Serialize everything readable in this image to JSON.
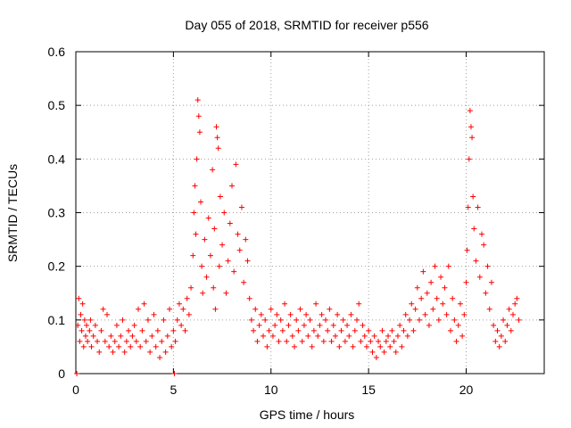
{
  "chart_data": {
    "type": "scatter",
    "title": "Day 055 of 2018, SRMTID for receiver p556",
    "xlabel": "GPS time / hours",
    "ylabel": "SRMTID / TECUs",
    "xlim": [
      0,
      24
    ],
    "ylim": [
      0,
      0.6
    ],
    "xticks": [
      0,
      5,
      10,
      15,
      20
    ],
    "yticks": [
      0,
      0.1,
      0.2,
      0.3,
      0.4,
      0.5,
      0.6
    ],
    "xtick_labels": [
      "0",
      "5",
      "10",
      "15",
      "20"
    ],
    "ytick_labels": [
      "0",
      "0.1",
      "0.2",
      "0.3",
      "0.4",
      "0.5",
      "0.6"
    ],
    "grid": true,
    "marker": "+",
    "color": "#ff0000",
    "series": [
      {
        "name": "SRMTID",
        "points": [
          [
            0.05,
            0.0
          ],
          [
            0.1,
            0.09
          ],
          [
            0.15,
            0.14
          ],
          [
            0.2,
            0.06
          ],
          [
            0.25,
            0.11
          ],
          [
            0.3,
            0.08
          ],
          [
            0.35,
            0.13
          ],
          [
            0.4,
            0.05
          ],
          [
            0.45,
            0.1
          ],
          [
            0.5,
            0.07
          ],
          [
            0.55,
            0.09
          ],
          [
            0.6,
            0.06
          ],
          [
            0.7,
            0.08
          ],
          [
            0.75,
            0.1
          ],
          [
            0.8,
            0.05
          ],
          [
            0.9,
            0.07
          ],
          [
            1.0,
            0.09
          ],
          [
            1.1,
            0.06
          ],
          [
            1.2,
            0.04
          ],
          [
            1.3,
            0.08
          ],
          [
            1.4,
            0.12
          ],
          [
            1.5,
            0.06
          ],
          [
            1.6,
            0.11
          ],
          [
            1.7,
            0.05
          ],
          [
            1.8,
            0.07
          ],
          [
            1.9,
            0.04
          ],
          [
            2.0,
            0.06
          ],
          [
            2.1,
            0.09
          ],
          [
            2.2,
            0.05
          ],
          [
            2.3,
            0.07
          ],
          [
            2.4,
            0.1
          ],
          [
            2.5,
            0.04
          ],
          [
            2.6,
            0.06
          ],
          [
            2.7,
            0.08
          ],
          [
            2.8,
            0.05
          ],
          [
            2.9,
            0.07
          ],
          [
            3.0,
            0.09
          ],
          [
            3.1,
            0.06
          ],
          [
            3.2,
            0.12
          ],
          [
            3.3,
            0.05
          ],
          [
            3.4,
            0.08
          ],
          [
            3.5,
            0.13
          ],
          [
            3.6,
            0.06
          ],
          [
            3.7,
            0.1
          ],
          [
            3.8,
            0.04
          ],
          [
            3.9,
            0.07
          ],
          [
            4.0,
            0.11
          ],
          [
            4.1,
            0.05
          ],
          [
            4.2,
            0.08
          ],
          [
            4.3,
            0.03
          ],
          [
            4.4,
            0.06
          ],
          [
            4.5,
            0.1
          ],
          [
            4.6,
            0.04
          ],
          [
            4.7,
            0.07
          ],
          [
            4.8,
            0.12
          ],
          [
            4.9,
            0.05
          ],
          [
            5.0,
            0.08
          ],
          [
            5.05,
            0.0
          ],
          [
            5.1,
            0.06
          ],
          [
            5.2,
            0.1
          ],
          [
            5.3,
            0.13
          ],
          [
            5.4,
            0.09
          ],
          [
            5.5,
            0.12
          ],
          [
            5.6,
            0.08
          ],
          [
            5.7,
            0.14
          ],
          [
            5.8,
            0.11
          ],
          [
            5.9,
            0.16
          ],
          [
            6.0,
            0.22
          ],
          [
            6.05,
            0.3
          ],
          [
            6.1,
            0.35
          ],
          [
            6.15,
            0.26
          ],
          [
            6.2,
            0.4
          ],
          [
            6.25,
            0.51
          ],
          [
            6.3,
            0.48
          ],
          [
            6.35,
            0.45
          ],
          [
            6.4,
            0.32
          ],
          [
            6.45,
            0.2
          ],
          [
            6.5,
            0.15
          ],
          [
            6.6,
            0.25
          ],
          [
            6.7,
            0.18
          ],
          [
            6.8,
            0.29
          ],
          [
            6.9,
            0.22
          ],
          [
            7.0,
            0.38
          ],
          [
            7.05,
            0.16
          ],
          [
            7.1,
            0.27
          ],
          [
            7.15,
            0.12
          ],
          [
            7.2,
            0.46
          ],
          [
            7.25,
            0.44
          ],
          [
            7.3,
            0.42
          ],
          [
            7.35,
            0.2
          ],
          [
            7.4,
            0.33
          ],
          [
            7.5,
            0.24
          ],
          [
            7.6,
            0.3
          ],
          [
            7.7,
            0.15
          ],
          [
            7.8,
            0.21
          ],
          [
            7.9,
            0.28
          ],
          [
            8.0,
            0.35
          ],
          [
            8.1,
            0.19
          ],
          [
            8.2,
            0.39
          ],
          [
            8.3,
            0.26
          ],
          [
            8.4,
            0.23
          ],
          [
            8.5,
            0.31
          ],
          [
            8.6,
            0.17
          ],
          [
            8.7,
            0.25
          ],
          [
            8.8,
            0.21
          ],
          [
            8.9,
            0.14
          ],
          [
            9.0,
            0.1
          ],
          [
            9.1,
            0.08
          ],
          [
            9.2,
            0.12
          ],
          [
            9.3,
            0.06
          ],
          [
            9.4,
            0.09
          ],
          [
            9.5,
            0.11
          ],
          [
            9.6,
            0.07
          ],
          [
            9.7,
            0.1
          ],
          [
            9.8,
            0.05
          ],
          [
            9.9,
            0.08
          ],
          [
            10.0,
            0.12
          ],
          [
            10.1,
            0.07
          ],
          [
            10.2,
            0.09
          ],
          [
            10.3,
            0.11
          ],
          [
            10.4,
            0.06
          ],
          [
            10.5,
            0.1
          ],
          [
            10.6,
            0.08
          ],
          [
            10.7,
            0.13
          ],
          [
            10.8,
            0.06
          ],
          [
            10.9,
            0.09
          ],
          [
            11.0,
            0.11
          ],
          [
            11.1,
            0.07
          ],
          [
            11.2,
            0.05
          ],
          [
            11.3,
            0.1
          ],
          [
            11.4,
            0.08
          ],
          [
            11.5,
            0.12
          ],
          [
            11.6,
            0.06
          ],
          [
            11.7,
            0.09
          ],
          [
            11.8,
            0.11
          ],
          [
            11.9,
            0.07
          ],
          [
            12.0,
            0.1
          ],
          [
            12.1,
            0.05
          ],
          [
            12.2,
            0.08
          ],
          [
            12.3,
            0.13
          ],
          [
            12.4,
            0.07
          ],
          [
            12.5,
            0.09
          ],
          [
            12.6,
            0.11
          ],
          [
            12.7,
            0.06
          ],
          [
            12.8,
            0.1
          ],
          [
            12.9,
            0.08
          ],
          [
            13.0,
            0.12
          ],
          [
            13.1,
            0.06
          ],
          [
            13.2,
            0.09
          ],
          [
            13.3,
            0.07
          ],
          [
            13.4,
            0.11
          ],
          [
            13.5,
            0.05
          ],
          [
            13.6,
            0.08
          ],
          [
            13.7,
            0.1
          ],
          [
            13.8,
            0.06
          ],
          [
            13.9,
            0.09
          ],
          [
            14.0,
            0.07
          ],
          [
            14.1,
            0.11
          ],
          [
            14.2,
            0.05
          ],
          [
            14.3,
            0.08
          ],
          [
            14.4,
            0.1
          ],
          [
            14.5,
            0.13
          ],
          [
            14.6,
            0.06
          ],
          [
            14.7,
            0.09
          ],
          [
            14.8,
            0.07
          ],
          [
            14.9,
            0.05
          ],
          [
            15.0,
            0.08
          ],
          [
            15.1,
            0.06
          ],
          [
            15.2,
            0.04
          ],
          [
            15.3,
            0.07
          ],
          [
            15.4,
            0.03
          ],
          [
            15.5,
            0.06
          ],
          [
            15.6,
            0.05
          ],
          [
            15.7,
            0.08
          ],
          [
            15.8,
            0.04
          ],
          [
            15.9,
            0.06
          ],
          [
            16.0,
            0.07
          ],
          [
            16.1,
            0.05
          ],
          [
            16.2,
            0.08
          ],
          [
            16.3,
            0.06
          ],
          [
            16.4,
            0.04
          ],
          [
            16.5,
            0.07
          ],
          [
            16.6,
            0.09
          ],
          [
            16.7,
            0.05
          ],
          [
            16.8,
            0.08
          ],
          [
            16.9,
            0.11
          ],
          [
            17.0,
            0.07
          ],
          [
            17.1,
            0.1
          ],
          [
            17.2,
            0.13
          ],
          [
            17.3,
            0.08
          ],
          [
            17.4,
            0.12
          ],
          [
            17.5,
            0.16
          ],
          [
            17.6,
            0.1
          ],
          [
            17.7,
            0.14
          ],
          [
            17.8,
            0.19
          ],
          [
            17.9,
            0.11
          ],
          [
            18.0,
            0.15
          ],
          [
            18.1,
            0.09
          ],
          [
            18.2,
            0.17
          ],
          [
            18.3,
            0.12
          ],
          [
            18.4,
            0.2
          ],
          [
            18.5,
            0.14
          ],
          [
            18.6,
            0.1
          ],
          [
            18.7,
            0.18
          ],
          [
            18.8,
            0.13
          ],
          [
            18.9,
            0.16
          ],
          [
            19.0,
            0.11
          ],
          [
            19.1,
            0.2
          ],
          [
            19.2,
            0.08
          ],
          [
            19.3,
            0.14
          ],
          [
            19.4,
            0.1
          ],
          [
            19.5,
            0.06
          ],
          [
            19.6,
            0.09
          ],
          [
            19.7,
            0.13
          ],
          [
            19.8,
            0.07
          ],
          [
            19.9,
            0.11
          ],
          [
            20.0,
            0.17
          ],
          [
            20.05,
            0.23
          ],
          [
            20.1,
            0.31
          ],
          [
            20.15,
            0.4
          ],
          [
            20.2,
            0.49
          ],
          [
            20.25,
            0.46
          ],
          [
            20.3,
            0.44
          ],
          [
            20.35,
            0.33
          ],
          [
            20.4,
            0.27
          ],
          [
            20.5,
            0.21
          ],
          [
            20.6,
            0.31
          ],
          [
            20.7,
            0.18
          ],
          [
            20.8,
            0.26
          ],
          [
            20.9,
            0.24
          ],
          [
            21.0,
            0.15
          ],
          [
            21.1,
            0.2
          ],
          [
            21.2,
            0.12
          ],
          [
            21.3,
            0.17
          ],
          [
            21.4,
            0.09
          ],
          [
            21.5,
            0.06
          ],
          [
            21.6,
            0.08
          ],
          [
            21.7,
            0.05
          ],
          [
            21.8,
            0.07
          ],
          [
            21.9,
            0.1
          ],
          [
            22.0,
            0.06
          ],
          [
            22.1,
            0.09
          ],
          [
            22.2,
            0.12
          ],
          [
            22.3,
            0.08
          ],
          [
            22.4,
            0.11
          ],
          [
            22.5,
            0.13
          ],
          [
            22.6,
            0.14
          ],
          [
            22.7,
            0.1
          ]
        ]
      }
    ]
  }
}
